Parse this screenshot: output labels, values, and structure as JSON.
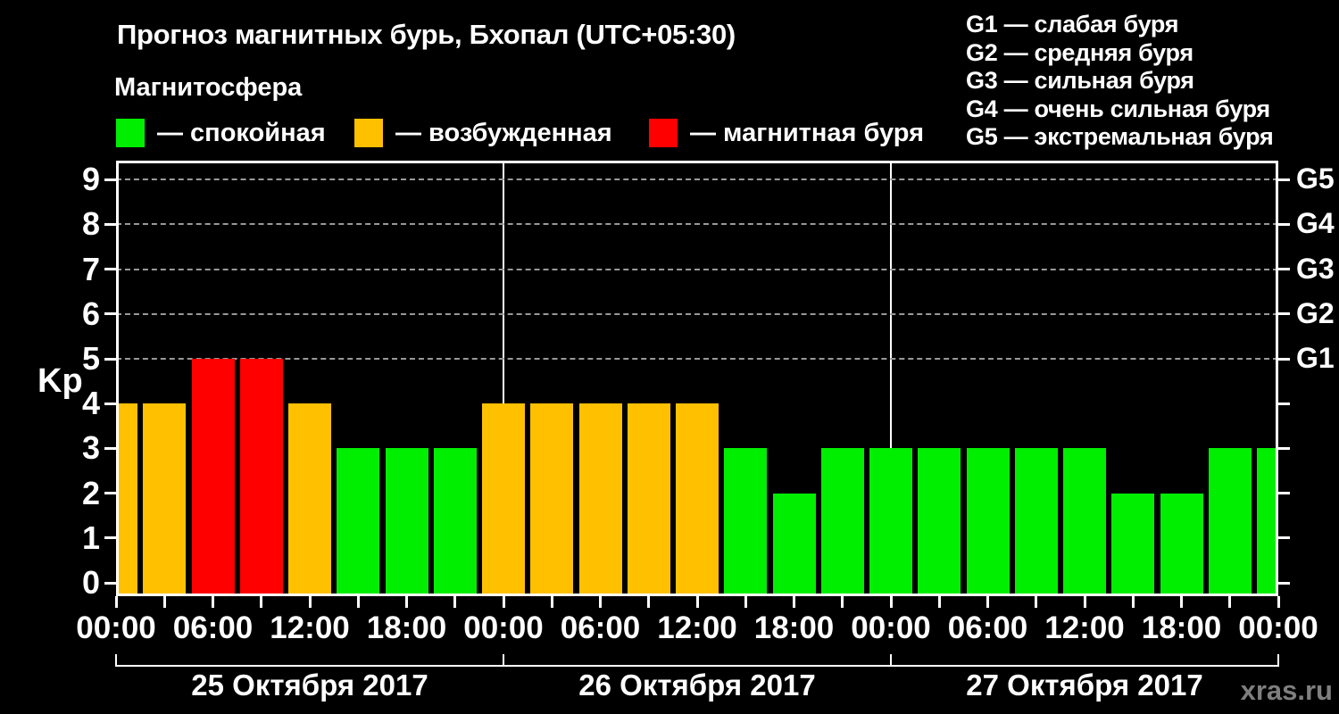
{
  "page": {
    "background": "#000000",
    "watermark": "xras.ru"
  },
  "header": {
    "title": "Прогноз магнитных бурь, Бхопал (UTC+05:30)",
    "subtitle": "Магнитосфера"
  },
  "legend": {
    "items": [
      {
        "state": "quiet",
        "label": "— спокойная"
      },
      {
        "state": "excited",
        "label": "— возбужденная"
      },
      {
        "state": "storm",
        "label": "— магнитная буря"
      }
    ]
  },
  "g_legend": {
    "items": [
      "G1 — слабая буря",
      "G2 — средняя буря",
      "G3 — сильная буря",
      "G4 — очень сильная буря",
      "G5 — экстремальная буря"
    ]
  },
  "colors": {
    "quiet": "#00EE00",
    "excited": "#FFC000",
    "storm": "#FF0000",
    "grid": "#999999",
    "axis": "#FFFFFF",
    "text": "#FFFFFF",
    "watermark": "#7F7F7F",
    "background": "#000000"
  },
  "axis": {
    "y_label": "Kp",
    "y_ticks": [
      "0",
      "1",
      "2",
      "3",
      "4",
      "5",
      "6",
      "7",
      "8",
      "9"
    ],
    "right_labels": [
      "G1",
      "G2",
      "G3",
      "G4",
      "G5"
    ],
    "right_label_kp_levels": [
      5,
      6,
      7,
      8,
      9
    ]
  },
  "x_axis": {
    "tick_labels": [
      "00:00",
      "06:00",
      "12:00",
      "18:00",
      "00:00",
      "06:00",
      "12:00",
      "18:00",
      "00:00",
      "06:00",
      "12:00",
      "18:00",
      "00:00"
    ],
    "dates": [
      "25 Октября 2017",
      "26 Октября 2017",
      "27 Октября 2017"
    ]
  },
  "chart_data": {
    "type": "bar",
    "title": "Прогноз магнитных бурь, Бхопал (UTC+05:30)",
    "ylabel": "Kp",
    "ylim": [
      0,
      9.4
    ],
    "gridlines_kp": [
      5,
      6,
      7,
      8,
      9
    ],
    "legend_position": "top",
    "interval_hours": 3,
    "timezone": "UTC+05:30",
    "x": [
      "2017-10-25 00:00",
      "2017-10-25 03:00",
      "2017-10-25 06:00",
      "2017-10-25 09:00",
      "2017-10-25 12:00",
      "2017-10-25 15:00",
      "2017-10-25 18:00",
      "2017-10-25 21:00",
      "2017-10-26 00:00",
      "2017-10-26 03:00",
      "2017-10-26 06:00",
      "2017-10-26 09:00",
      "2017-10-26 12:00",
      "2017-10-26 15:00",
      "2017-10-26 18:00",
      "2017-10-26 21:00",
      "2017-10-27 00:00",
      "2017-10-27 03:00",
      "2017-10-27 06:00",
      "2017-10-27 09:00",
      "2017-10-27 12:00",
      "2017-10-27 15:00",
      "2017-10-27 18:00",
      "2017-10-27 21:00",
      "2017-10-28 00:00"
    ],
    "values": [
      4,
      4,
      5,
      5,
      4,
      3,
      3,
      3,
      4,
      4,
      4,
      4,
      4,
      3,
      2,
      3,
      3,
      3,
      3,
      3,
      3,
      2,
      2,
      3,
      3
    ],
    "states": [
      "excited",
      "excited",
      "storm",
      "storm",
      "excited",
      "quiet",
      "quiet",
      "quiet",
      "excited",
      "excited",
      "excited",
      "excited",
      "excited",
      "quiet",
      "quiet",
      "quiet",
      "quiet",
      "quiet",
      "quiet",
      "quiet",
      "quiet",
      "quiet",
      "quiet",
      "quiet",
      "quiet"
    ]
  }
}
